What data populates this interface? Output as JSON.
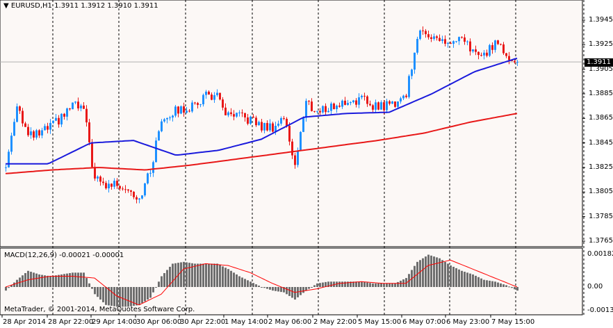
{
  "header": {
    "symbol": "EURUSD,H1",
    "ohlc": "1.3911 1.3912 1.3910 1.3911",
    "menu_icon": "triangle-down-icon"
  },
  "macd_header": "MACD(12,26,9) -0.00021 -0.00001",
  "copyright": "MetaTrader, © 2001-2014, MetaQuotes Software Corp.",
  "current_price": "1.3911",
  "colors": {
    "background": "#fcf8f6",
    "bull": "#1e90ff",
    "bear": "#e81818",
    "ma_fast": "#1a1adc",
    "ma_slow": "#e81818",
    "histogram": "#6e6e6e",
    "signal": "#ff0000"
  },
  "chart_data": [
    {
      "type": "candlestick",
      "timeframe": "H1",
      "price_ticks": [
        "1.3945",
        "1.3925",
        "1.3905",
        "1.3885",
        "1.3865",
        "1.3845",
        "1.3825",
        "1.3805",
        "1.3785",
        "1.3765"
      ],
      "ylim": [
        1.3758,
        1.3961
      ],
      "time_ticks": [
        "28 Apr 2014",
        "28 Apr 22:00",
        "29 Apr 14:00",
        "30 Apr 06:00",
        "30 Apr 22:00",
        "1 May 14:00",
        "2 May 06:00",
        "2 May 22:00",
        "5 May 15:00",
        "6 May 07:00",
        "6 May 23:00",
        "7 May 15:00"
      ],
      "close_every_4h": [
        1.3825,
        1.3878,
        1.385,
        1.3852,
        1.3858,
        1.3865,
        1.3876,
        1.3872,
        1.3815,
        1.381,
        1.3812,
        1.3808,
        1.38,
        1.3822,
        1.3865,
        1.387,
        1.3873,
        1.3875,
        1.3885,
        1.3882,
        1.3866,
        1.3866,
        1.3864,
        1.3858,
        1.3858,
        1.3866,
        1.3828,
        1.3878,
        1.387,
        1.3874,
        1.3876,
        1.388,
        1.388,
        1.3876,
        1.3875,
        1.3878,
        1.3885,
        1.3932,
        1.3935,
        1.3928,
        1.3926,
        1.3928,
        1.392,
        1.3915,
        1.3928,
        1.3918,
        1.3911
      ],
      "ma_fast": [
        1.3828,
        1.3845,
        1.3847,
        1.3835,
        1.3839,
        1.3848,
        1.3866,
        1.3869,
        1.387,
        1.3885,
        1.3903,
        1.3914
      ],
      "ma_slow": [
        1.382,
        1.3823,
        1.3825,
        1.3823,
        1.3827,
        1.3832,
        1.3837,
        1.3842,
        1.3847,
        1.3853,
        1.3862,
        1.3869
      ],
      "grid": "vertical dashed day separators"
    },
    {
      "type": "bar+line",
      "name": "MACD(12,26,9)",
      "ticks": [
        "0.00182",
        "0.00",
        "-0.00133"
      ],
      "ylim": [
        -0.00133,
        0.00182
      ],
      "histogram_every_4h": [
        -0.0002,
        0.0004,
        0.0009,
        0.0007,
        0.0006,
        0.0007,
        0.0008,
        0.0008,
        -0.0004,
        -0.001,
        -0.0011,
        -0.0011,
        -0.001,
        -0.0006,
        0.0006,
        0.0013,
        0.0014,
        0.0013,
        0.0013,
        0.0013,
        0.001,
        0.0006,
        0.0003,
        0.0,
        -0.0002,
        -0.0003,
        -0.0007,
        -0.0002,
        0.0002,
        0.0003,
        0.0003,
        0.0003,
        0.0003,
        0.0002,
        0.0002,
        0.0002,
        0.0005,
        0.0014,
        0.0018,
        0.0016,
        0.0012,
        0.0009,
        0.0007,
        0.0004,
        0.0003,
        0.0001,
        -0.0002
      ],
      "signal": [
        0.0,
        0.0004,
        0.0006,
        0.0006,
        0.0005,
        -0.0005,
        -0.001,
        -0.0004,
        0.001,
        0.0013,
        0.0012,
        0.0008,
        0.0002,
        -0.0003,
        -0.0001,
        0.0002,
        0.0003,
        0.0002,
        0.0002,
        0.0012,
        0.0015,
        0.001,
        0.0005,
        0.0
      ]
    }
  ]
}
